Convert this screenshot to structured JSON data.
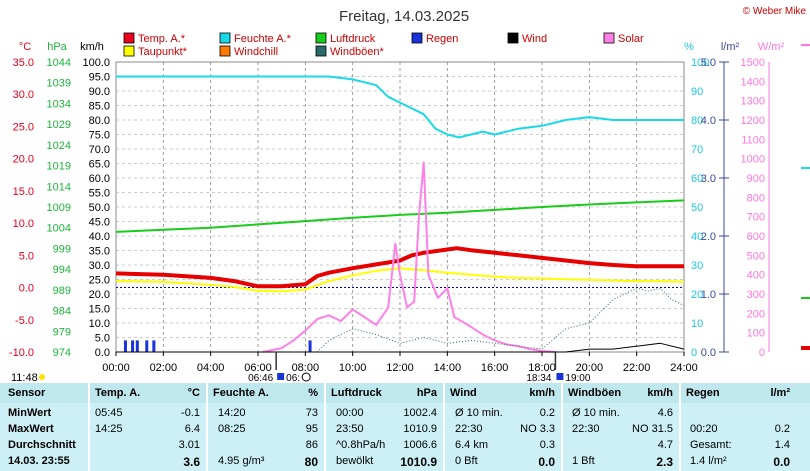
{
  "page": {
    "title": "Freitag, 14.03.2025",
    "credit": "© Weber Mike"
  },
  "chart_data": {
    "type": "line",
    "title": "Freitag, 14.03.2025",
    "x_ticks": [
      "00:00",
      "02:00",
      "04:00",
      "06:00",
      "08:00",
      "10:00",
      "12:00",
      "14:00",
      "16:00",
      "18:00",
      "20:00",
      "22:00",
      "24:00"
    ],
    "axes": {
      "temp_c": {
        "label": "°C",
        "color": "#e8001c",
        "range": [
          -10,
          35
        ],
        "step": 5
      },
      "hpa": {
        "label": "hPa",
        "color": "#1db53c",
        "range": [
          974,
          1044
        ],
        "step": 5
      },
      "kmh": {
        "label": "km/h",
        "color": "#000000",
        "range": [
          0,
          100
        ],
        "step": 5
      },
      "humidity": {
        "label": "%",
        "color": "#1ec8e0",
        "range": [
          0,
          100
        ],
        "step": 10
      },
      "rain": {
        "label": "l/m²",
        "color": "#3a4a9a",
        "range": [
          0,
          5
        ],
        "step": 1
      },
      "solar": {
        "label": "W/m²",
        "color": "#ff77dd",
        "range": [
          0,
          1500
        ],
        "step": 100
      }
    },
    "legend": [
      {
        "name": "Temp. A.*",
        "color": "#e8001c"
      },
      {
        "name": "Feuchte A.*",
        "color": "#19d9e8"
      },
      {
        "name": "Luftdruck",
        "color": "#19cc19"
      },
      {
        "name": "Regen",
        "color": "#1a33d9"
      },
      {
        "name": "Wind",
        "color": "#000000"
      },
      {
        "name": "Solar",
        "color": "#ff80e6"
      },
      {
        "name": "Taupunkt*",
        "color": "#ffff00"
      },
      {
        "name": "Windchill",
        "color": "#ff7a00"
      },
      {
        "name": "Windböen*",
        "color": "#2a6a6a"
      }
    ],
    "series": [
      {
        "name": "Temp. A.*",
        "axis": "temp_c",
        "color": "#e60000",
        "width": 4,
        "points": [
          [
            0,
            2.2
          ],
          [
            2,
            2.0
          ],
          [
            4,
            1.5
          ],
          [
            5,
            1.0
          ],
          [
            6,
            0.2
          ],
          [
            7,
            0.2
          ],
          [
            8,
            0.5
          ],
          [
            8.5,
            1.8
          ],
          [
            9,
            2.3
          ],
          [
            10,
            3.0
          ],
          [
            11,
            3.6
          ],
          [
            12,
            4.2
          ],
          [
            12.5,
            5.0
          ],
          [
            13,
            5.4
          ],
          [
            14,
            5.9
          ],
          [
            14.4,
            6.1
          ],
          [
            15,
            5.8
          ],
          [
            16,
            5.4
          ],
          [
            17,
            5.0
          ],
          [
            18,
            4.6
          ],
          [
            19,
            4.2
          ],
          [
            20,
            3.8
          ],
          [
            21,
            3.5
          ],
          [
            22,
            3.3
          ],
          [
            23,
            3.3
          ],
          [
            24,
            3.3
          ]
        ]
      },
      {
        "name": "Taupunkt*",
        "axis": "temp_c",
        "color": "#ffff00",
        "width": 2,
        "points": [
          [
            0,
            1.0
          ],
          [
            2,
            0.9
          ],
          [
            4,
            0.4
          ],
          [
            5,
            0.1
          ],
          [
            6,
            -0.5
          ],
          [
            7,
            -0.6
          ],
          [
            8,
            -0.3
          ],
          [
            9,
            1.0
          ],
          [
            10,
            1.9
          ],
          [
            11,
            2.6
          ],
          [
            12,
            3.0
          ],
          [
            13,
            2.7
          ],
          [
            14,
            2.3
          ],
          [
            15,
            2.0
          ],
          [
            16,
            1.7
          ],
          [
            17,
            1.5
          ],
          [
            18,
            1.4
          ],
          [
            19,
            1.3
          ],
          [
            20,
            1.2
          ],
          [
            21,
            1.1
          ],
          [
            22,
            1.0
          ],
          [
            23,
            1.0
          ],
          [
            24,
            0.9
          ]
        ]
      },
      {
        "name": "Feuchte A.*",
        "axis": "humidity",
        "color": "#19d9e8",
        "width": 2,
        "points": [
          [
            0,
            95
          ],
          [
            2,
            95
          ],
          [
            4,
            95
          ],
          [
            6,
            95
          ],
          [
            7,
            95
          ],
          [
            8,
            95
          ],
          [
            9,
            95
          ],
          [
            10,
            94
          ],
          [
            11,
            92
          ],
          [
            11.5,
            88
          ],
          [
            12,
            86
          ],
          [
            13,
            82
          ],
          [
            13.5,
            77
          ],
          [
            14,
            75
          ],
          [
            14.5,
            74
          ],
          [
            15,
            75
          ],
          [
            15.5,
            76
          ],
          [
            16,
            75
          ],
          [
            16.5,
            76
          ],
          [
            17,
            77
          ],
          [
            18,
            78
          ],
          [
            19,
            80
          ],
          [
            20,
            81
          ],
          [
            21,
            80
          ],
          [
            22,
            80
          ],
          [
            24,
            80
          ]
        ]
      },
      {
        "name": "Luftdruck",
        "axis": "hpa",
        "color": "#19cc19",
        "width": 2,
        "points": [
          [
            0,
            1003.0
          ],
          [
            2,
            1003.5
          ],
          [
            4,
            1004.0
          ],
          [
            6,
            1004.8
          ],
          [
            8,
            1005.6
          ],
          [
            10,
            1006.4
          ],
          [
            12,
            1007.1
          ],
          [
            14,
            1007.6
          ],
          [
            16,
            1008.3
          ],
          [
            18,
            1009.0
          ],
          [
            20,
            1009.6
          ],
          [
            22,
            1010.1
          ],
          [
            24,
            1010.6
          ]
        ]
      },
      {
        "name": "Solar",
        "axis": "solar",
        "color": "#ff80e6",
        "width": 2,
        "points": [
          [
            6.2,
            0
          ],
          [
            7,
            20
          ],
          [
            7.5,
            60
          ],
          [
            8,
            110
          ],
          [
            8.5,
            170
          ],
          [
            9,
            190
          ],
          [
            9.5,
            160
          ],
          [
            10,
            220
          ],
          [
            10.5,
            180
          ],
          [
            11,
            140
          ],
          [
            11.5,
            230
          ],
          [
            11.8,
            560
          ],
          [
            12,
            400
          ],
          [
            12.3,
            230
          ],
          [
            12.6,
            260
          ],
          [
            12.8,
            700
          ],
          [
            13,
            980
          ],
          [
            13.2,
            400
          ],
          [
            13.6,
            280
          ],
          [
            14,
            330
          ],
          [
            14.3,
            180
          ],
          [
            14.6,
            160
          ],
          [
            15,
            130
          ],
          [
            15.5,
            90
          ],
          [
            16,
            60
          ],
          [
            16.5,
            40
          ],
          [
            17,
            30
          ],
          [
            17.5,
            15
          ],
          [
            18,
            5
          ],
          [
            18.6,
            0
          ]
        ]
      },
      {
        "name": "Windböen*",
        "axis": "kmh",
        "color": "#2a6a6a",
        "width": 1,
        "dash": "1,2",
        "points": [
          [
            8.5,
            0
          ],
          [
            9,
            4
          ],
          [
            10,
            8
          ],
          [
            11,
            6
          ],
          [
            12,
            3
          ],
          [
            13,
            5
          ],
          [
            14,
            3
          ],
          [
            15,
            4
          ],
          [
            16,
            3
          ],
          [
            17,
            2
          ],
          [
            18,
            1
          ],
          [
            19,
            8
          ],
          [
            20,
            10
          ],
          [
            20.5,
            14
          ],
          [
            21,
            18
          ],
          [
            21.5,
            20
          ],
          [
            22,
            22
          ],
          [
            22.5,
            21
          ],
          [
            23,
            22
          ],
          [
            23.5,
            18
          ],
          [
            24,
            16
          ]
        ]
      },
      {
        "name": "Wind",
        "axis": "kmh",
        "color": "#000000",
        "width": 1,
        "points": [
          [
            0,
            0
          ],
          [
            19,
            0
          ],
          [
            20,
            1
          ],
          [
            21,
            1
          ],
          [
            22,
            2
          ],
          [
            23,
            3
          ],
          [
            24,
            1
          ]
        ]
      }
    ],
    "rain_bars": [
      {
        "h": 0.4,
        "v": 0.2
      },
      {
        "h": 0.7,
        "v": 0.2
      },
      {
        "h": 0.9,
        "v": 0.2
      },
      {
        "h": 1.3,
        "v": 0.2
      },
      {
        "h": 1.6,
        "v": 0.2
      },
      {
        "h": 8.2,
        "v": 0.2
      }
    ],
    "sun_times": {
      "sunrise": "06:46",
      "sunrise_short": "06:",
      "sunset": "18:34",
      "sunset_short": "19:00"
    },
    "marker_time": "11:48"
  },
  "stats": {
    "headers": {
      "sensor": "Sensor",
      "temp": "Temp. A.",
      "temp_unit": "°C",
      "hum": "Feuchte A.",
      "hum_unit": "%",
      "press": "Luftdruck",
      "press_unit": "hPa",
      "wind": "Wind",
      "wind_unit": "km/h",
      "gust": "Windböen",
      "gust_unit": "km/h",
      "rain": "Regen",
      "rain_unit": "l/m²"
    },
    "rows": [
      {
        "label": "MinWert",
        "temp_t": "05:45",
        "temp_v": "-0.1",
        "hum_t": "14:20",
        "hum_v": "73",
        "press_t": "00:00",
        "press_v": "1002.4",
        "wind_t": "Ø 10 min.",
        "wind_v": "0.2",
        "gust_t": "Ø 10 min.",
        "gust_v": "4.6",
        "rain_t": "",
        "rain_v": ""
      },
      {
        "label": "MaxWert",
        "temp_t": "14:25",
        "temp_v": "6.4",
        "hum_t": "08:25",
        "hum_v": "95",
        "press_t": "23:50",
        "press_v": "1010.9",
        "wind_t": "22:30",
        "wind_m": "NO 3.3",
        "wind_v": "",
        "gust_t": "22:30",
        "gust_m": "NO 31.5",
        "gust_v": "",
        "rain_t": "00:20",
        "rain_v": "0.2"
      },
      {
        "label": "Durchschnitt",
        "temp_t": "",
        "temp_v": "3.01",
        "hum_t": "",
        "hum_v": "86",
        "press_t": "^0.8hPa/h",
        "press_v": "1006.6",
        "wind_t": "6.4 km",
        "wind_v": "0.3",
        "gust_t": "",
        "gust_v": "4.7",
        "rain_t": "Gesamt:",
        "rain_v": "1.4"
      },
      {
        "label": "14.03. 23:55",
        "temp_t": "",
        "temp_v": "3.6",
        "hum_t": "4.95 g/m³",
        "hum_v": "80",
        "press_t": "bewölkt",
        "press_v": "1010.9",
        "wind_t": "0 Bft",
        "wind_v": "0.0",
        "gust_t": "1 Bft",
        "gust_v": "2.3",
        "rain_t": "1.4 l/m²",
        "rain_v": "0.0"
      }
    ]
  }
}
